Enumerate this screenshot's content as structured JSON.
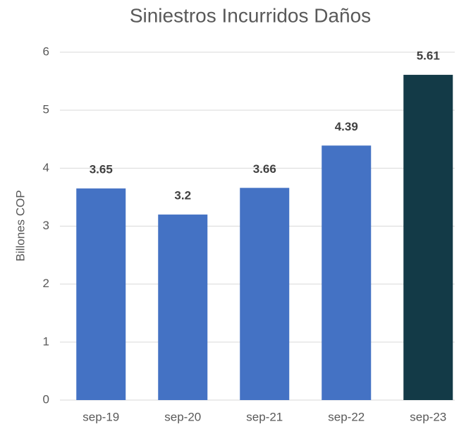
{
  "chart_data": {
    "type": "bar",
    "title": "Siniestros Incurridos Daños",
    "ylabel": "Billones COP",
    "categories": [
      "sep-19",
      "sep-20",
      "sep-21",
      "sep-22",
      "sep-23"
    ],
    "values": [
      3.65,
      3.2,
      3.66,
      4.39,
      5.61
    ],
    "colors": [
      "#4472c4",
      "#4472c4",
      "#4472c4",
      "#4472c4",
      "#133a47"
    ],
    "ylim": [
      0,
      6
    ],
    "yticks": [
      0,
      1,
      2,
      3,
      4,
      5,
      6
    ],
    "grid": true
  }
}
